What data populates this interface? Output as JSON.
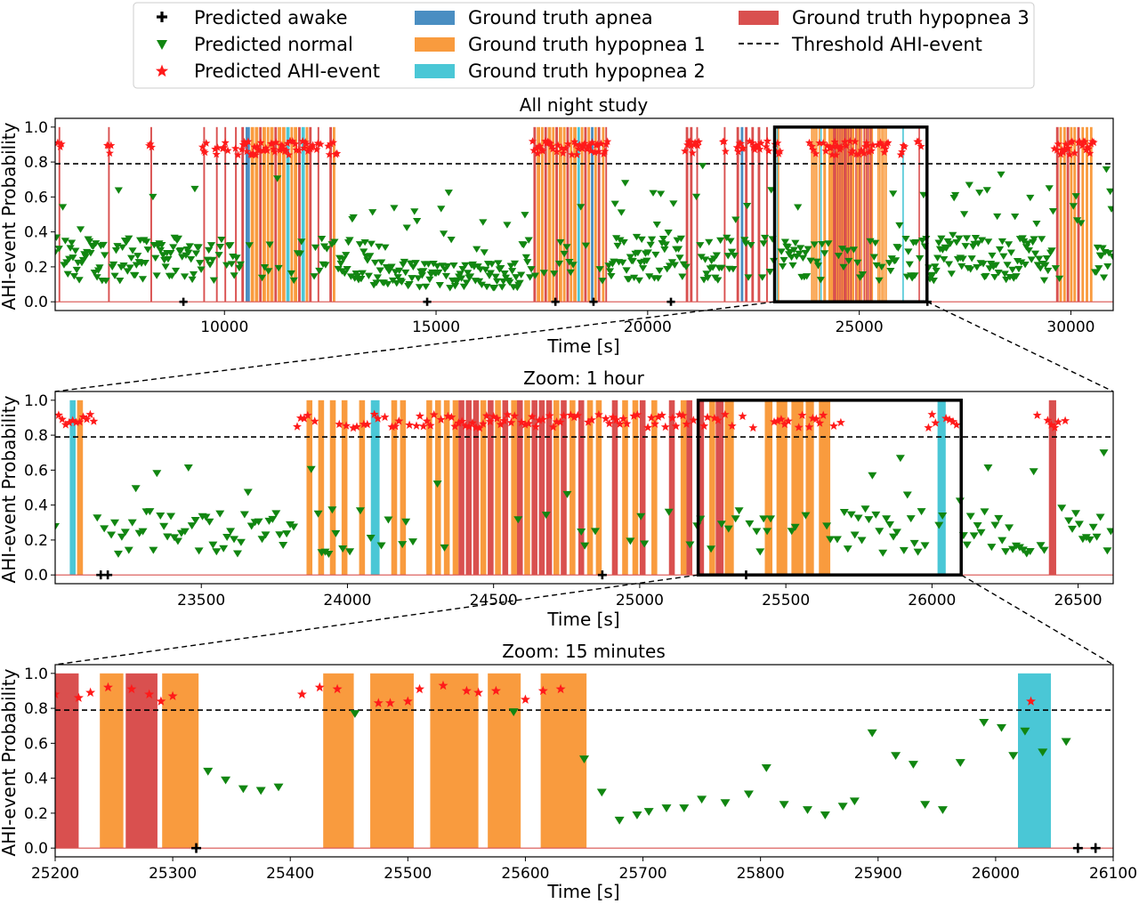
{
  "colors": {
    "apnea": "#4a8ec2",
    "hyp1": "#f99b3e",
    "hyp2": "#4ac7d6",
    "hyp3": "#d9504f",
    "normal": "#118611",
    "ahi": "#ff1a1a",
    "awake": "#000000",
    "baseline": "#d9504f"
  },
  "legend": {
    "awake": "Predicted awake",
    "normal": "Predicted normal",
    "ahi": "Predicted AHI-event",
    "apnea": "Ground truth apnea",
    "hyp1": "Ground truth hypopnea 1",
    "hyp2": "Ground truth hypopnea 2",
    "hyp3": "Ground truth hypopnea 3",
    "threshold": "Threshold AHI-event"
  },
  "chart_data": [
    {
      "type": "scatter",
      "title": "All night study",
      "xlabel": "Time [s]",
      "ylabel": "AHI-event Probability",
      "xlim": [
        6000,
        31000
      ],
      "ylim": [
        -0.05,
        1.05
      ],
      "xticks": [
        10000,
        15000,
        20000,
        25000,
        30000
      ],
      "yticks": [
        0.0,
        0.2,
        0.4,
        0.6,
        0.8,
        1.0
      ],
      "threshold": 0.79,
      "zoom_box": [
        23000,
        26600
      ],
      "events": [
        {
          "x": 6080,
          "w": 40,
          "type": "hyp3"
        },
        {
          "x": 7250,
          "w": 40,
          "type": "hyp3"
        },
        {
          "x": 8250,
          "w": 40,
          "type": "hyp3"
        },
        {
          "x": 9500,
          "w": 40,
          "type": "hyp3"
        },
        {
          "x": 9800,
          "w": 40,
          "type": "hyp3"
        },
        {
          "x": 10000,
          "w": 40,
          "type": "hyp3"
        },
        {
          "x": 10250,
          "w": 40,
          "type": "hyp3"
        },
        {
          "x": 10400,
          "w": 60,
          "type": "hyp3"
        },
        {
          "x": 10500,
          "w": 100,
          "type": "apnea"
        },
        {
          "x": 10620,
          "w": 80,
          "type": "hyp1"
        },
        {
          "x": 10720,
          "w": 80,
          "type": "hyp1"
        },
        {
          "x": 10820,
          "w": 60,
          "type": "hyp3"
        },
        {
          "x": 10900,
          "w": 80,
          "type": "hyp1"
        },
        {
          "x": 11000,
          "w": 60,
          "type": "hyp1"
        },
        {
          "x": 11080,
          "w": 80,
          "type": "hyp1"
        },
        {
          "x": 11180,
          "w": 60,
          "type": "hyp3"
        },
        {
          "x": 11260,
          "w": 80,
          "type": "hyp1"
        },
        {
          "x": 11360,
          "w": 80,
          "type": "hyp1"
        },
        {
          "x": 11460,
          "w": 80,
          "type": "hyp2"
        },
        {
          "x": 11560,
          "w": 60,
          "type": "hyp1"
        },
        {
          "x": 11640,
          "w": 80,
          "type": "hyp1"
        },
        {
          "x": 11740,
          "w": 60,
          "type": "hyp3"
        },
        {
          "x": 11820,
          "w": 80,
          "type": "hyp2"
        },
        {
          "x": 11920,
          "w": 60,
          "type": "hyp1"
        },
        {
          "x": 12000,
          "w": 60,
          "type": "hyp3"
        },
        {
          "x": 12200,
          "w": 40,
          "type": "hyp3"
        },
        {
          "x": 12480,
          "w": 60,
          "type": "hyp3"
        },
        {
          "x": 12560,
          "w": 60,
          "type": "hyp1"
        },
        {
          "x": 17300,
          "w": 60,
          "type": "hyp3"
        },
        {
          "x": 17380,
          "w": 80,
          "type": "hyp1"
        },
        {
          "x": 17480,
          "w": 60,
          "type": "hyp1"
        },
        {
          "x": 17560,
          "w": 60,
          "type": "hyp3"
        },
        {
          "x": 17640,
          "w": 80,
          "type": "hyp1"
        },
        {
          "x": 17740,
          "w": 60,
          "type": "hyp1"
        },
        {
          "x": 17820,
          "w": 60,
          "type": "hyp3"
        },
        {
          "x": 17900,
          "w": 80,
          "type": "hyp1"
        },
        {
          "x": 18000,
          "w": 60,
          "type": "hyp1"
        },
        {
          "x": 18080,
          "w": 60,
          "type": "hyp3"
        },
        {
          "x": 18160,
          "w": 60,
          "type": "hyp1"
        },
        {
          "x": 18240,
          "w": 80,
          "type": "hyp1"
        },
        {
          "x": 18340,
          "w": 60,
          "type": "hyp2"
        },
        {
          "x": 18420,
          "w": 60,
          "type": "hyp1"
        },
        {
          "x": 18500,
          "w": 60,
          "type": "hyp3"
        },
        {
          "x": 18580,
          "w": 60,
          "type": "hyp1"
        },
        {
          "x": 18660,
          "w": 60,
          "type": "apnea"
        },
        {
          "x": 18740,
          "w": 60,
          "type": "hyp1"
        },
        {
          "x": 18820,
          "w": 60,
          "type": "hyp3"
        },
        {
          "x": 18920,
          "w": 60,
          "type": "hyp1"
        },
        {
          "x": 19000,
          "w": 40,
          "type": "hyp3"
        },
        {
          "x": 20900,
          "w": 60,
          "type": "hyp3"
        },
        {
          "x": 21000,
          "w": 60,
          "type": "hyp3"
        },
        {
          "x": 21150,
          "w": 40,
          "type": "hyp3"
        },
        {
          "x": 21800,
          "w": 40,
          "type": "hyp3"
        },
        {
          "x": 22100,
          "w": 60,
          "type": "hyp3"
        },
        {
          "x": 22200,
          "w": 60,
          "type": "apnea"
        },
        {
          "x": 22300,
          "w": 60,
          "type": "hyp3"
        },
        {
          "x": 22450,
          "w": 60,
          "type": "hyp3"
        },
        {
          "x": 22600,
          "w": 60,
          "type": "hyp3"
        },
        {
          "x": 22800,
          "w": 40,
          "type": "hyp3"
        },
        {
          "x": 23050,
          "w": 20,
          "type": "hyp2"
        },
        {
          "x": 23075,
          "w": 20,
          "type": "hyp1"
        },
        {
          "x": 23860,
          "w": 20,
          "type": "hyp1"
        },
        {
          "x": 23900,
          "w": 20,
          "type": "hyp1"
        },
        {
          "x": 23940,
          "w": 20,
          "type": "hyp1"
        },
        {
          "x": 23980,
          "w": 20,
          "type": "hyp1"
        },
        {
          "x": 24040,
          "w": 20,
          "type": "hyp1"
        },
        {
          "x": 24080,
          "w": 30,
          "type": "hyp2"
        },
        {
          "x": 24150,
          "w": 20,
          "type": "hyp1"
        },
        {
          "x": 24180,
          "w": 20,
          "type": "hyp1"
        },
        {
          "x": 24270,
          "w": 20,
          "type": "hyp1"
        },
        {
          "x": 24300,
          "w": 20,
          "type": "hyp1"
        },
        {
          "x": 24330,
          "w": 20,
          "type": "hyp1"
        },
        {
          "x": 24360,
          "w": 20,
          "type": "hyp1"
        },
        {
          "x": 24380,
          "w": 20,
          "type": "hyp3"
        },
        {
          "x": 24405,
          "w": 20,
          "type": "hyp3"
        },
        {
          "x": 24430,
          "w": 20,
          "type": "hyp3"
        },
        {
          "x": 24455,
          "w": 20,
          "type": "hyp1"
        },
        {
          "x": 24480,
          "w": 20,
          "type": "hyp3"
        },
        {
          "x": 24505,
          "w": 20,
          "type": "hyp1"
        },
        {
          "x": 24530,
          "w": 20,
          "type": "hyp3"
        },
        {
          "x": 24560,
          "w": 20,
          "type": "hyp1"
        },
        {
          "x": 24580,
          "w": 20,
          "type": "hyp3"
        },
        {
          "x": 24605,
          "w": 20,
          "type": "hyp1"
        },
        {
          "x": 24630,
          "w": 20,
          "type": "hyp3"
        },
        {
          "x": 24655,
          "w": 20,
          "type": "hyp3"
        },
        {
          "x": 24680,
          "w": 20,
          "type": "hyp3"
        },
        {
          "x": 24705,
          "w": 20,
          "type": "hyp1"
        },
        {
          "x": 24730,
          "w": 20,
          "type": "hyp3"
        },
        {
          "x": 24760,
          "w": 20,
          "type": "hyp1"
        },
        {
          "x": 24790,
          "w": 20,
          "type": "hyp3"
        },
        {
          "x": 24820,
          "w": 20,
          "type": "hyp1"
        },
        {
          "x": 24850,
          "w": 20,
          "type": "hyp1"
        },
        {
          "x": 24905,
          "w": 20,
          "type": "hyp3"
        },
        {
          "x": 24940,
          "w": 20,
          "type": "hyp1"
        },
        {
          "x": 24975,
          "w": 20,
          "type": "hyp1"
        },
        {
          "x": 25000,
          "w": 20,
          "type": "hyp3"
        },
        {
          "x": 25040,
          "w": 20,
          "type": "hyp1"
        },
        {
          "x": 25100,
          "w": 20,
          "type": "hyp3"
        },
        {
          "x": 25140,
          "w": 20,
          "type": "hyp1"
        },
        {
          "x": 25160,
          "w": 20,
          "type": "hyp3"
        },
        {
          "x": 25200,
          "w": 20,
          "type": "hyp3"
        },
        {
          "x": 25238,
          "w": 20,
          "type": "hyp1"
        },
        {
          "x": 25260,
          "w": 27,
          "type": "hyp3"
        },
        {
          "x": 25291,
          "w": 31,
          "type": "hyp1"
        },
        {
          "x": 25428,
          "w": 26,
          "type": "hyp1"
        },
        {
          "x": 25468,
          "w": 37,
          "type": "hyp1"
        },
        {
          "x": 25519,
          "w": 41,
          "type": "hyp1"
        },
        {
          "x": 25568,
          "w": 28,
          "type": "hyp1"
        },
        {
          "x": 25613,
          "w": 39,
          "type": "hyp1"
        },
        {
          "x": 26019,
          "w": 28,
          "type": "hyp2"
        },
        {
          "x": 26400,
          "w": 25,
          "type": "hyp3"
        },
        {
          "x": 29650,
          "w": 60,
          "type": "hyp3"
        },
        {
          "x": 29730,
          "w": 60,
          "type": "hyp1"
        },
        {
          "x": 29820,
          "w": 60,
          "type": "hyp1"
        },
        {
          "x": 29900,
          "w": 60,
          "type": "hyp3"
        },
        {
          "x": 29980,
          "w": 60,
          "type": "hyp1"
        },
        {
          "x": 30060,
          "w": 60,
          "type": "hyp1"
        },
        {
          "x": 30150,
          "w": 60,
          "type": "hyp3"
        },
        {
          "x": 30250,
          "w": 60,
          "type": "hyp1"
        },
        {
          "x": 30350,
          "w": 60,
          "type": "hyp1"
        },
        {
          "x": 30450,
          "w": 60,
          "type": "hyp1"
        }
      ]
    },
    {
      "type": "scatter",
      "title": "Zoom: 1 hour",
      "xlabel": "Time [s]",
      "ylabel": "AHI-event Probability",
      "xlim": [
        23000,
        26620
      ],
      "ylim": [
        -0.05,
        1.05
      ],
      "xticks": [
        23500,
        24000,
        24500,
        25000,
        25500,
        26000,
        26500
      ],
      "yticks": [
        0.0,
        0.2,
        0.4,
        0.6,
        0.8,
        1.0
      ],
      "threshold": 0.79,
      "zoom_box": [
        25200,
        26100
      ]
    },
    {
      "type": "scatter",
      "title": "Zoom: 15 minutes",
      "xlabel": "Time [s]",
      "ylabel": "AHI-event Probability",
      "xlim": [
        25200,
        26100
      ],
      "ylim": [
        -0.05,
        1.05
      ],
      "xticks": [
        25200,
        25300,
        25400,
        25500,
        25600,
        25700,
        25800,
        25900,
        26000,
        26100
      ],
      "yticks": [
        0.0,
        0.2,
        0.4,
        0.6,
        0.8,
        1.0
      ],
      "threshold": 0.79,
      "points": [
        {
          "x": 25200,
          "y": 0.88,
          "c": "ahi"
        },
        {
          "x": 25220,
          "y": 0.86,
          "c": "ahi"
        },
        {
          "x": 25230,
          "y": 0.89,
          "c": "ahi"
        },
        {
          "x": 25245,
          "y": 0.92,
          "c": "ahi"
        },
        {
          "x": 25265,
          "y": 0.91,
          "c": "ahi"
        },
        {
          "x": 25280,
          "y": 0.88,
          "c": "ahi"
        },
        {
          "x": 25290,
          "y": 0.84,
          "c": "ahi"
        },
        {
          "x": 25300,
          "y": 0.87,
          "c": "ahi"
        },
        {
          "x": 25320,
          "y": 0.0,
          "c": "awake"
        },
        {
          "x": 25330,
          "y": 0.44,
          "c": "normal"
        },
        {
          "x": 25345,
          "y": 0.39,
          "c": "normal"
        },
        {
          "x": 25360,
          "y": 0.34,
          "c": "normal"
        },
        {
          "x": 25375,
          "y": 0.33,
          "c": "normal"
        },
        {
          "x": 25390,
          "y": 0.35,
          "c": "normal"
        },
        {
          "x": 25410,
          "y": 0.88,
          "c": "ahi"
        },
        {
          "x": 25425,
          "y": 0.92,
          "c": "ahi"
        },
        {
          "x": 25440,
          "y": 0.91,
          "c": "ahi"
        },
        {
          "x": 25455,
          "y": 0.77,
          "c": "normal"
        },
        {
          "x": 25475,
          "y": 0.83,
          "c": "ahi"
        },
        {
          "x": 25485,
          "y": 0.83,
          "c": "ahi"
        },
        {
          "x": 25500,
          "y": 0.84,
          "c": "ahi"
        },
        {
          "x": 25510,
          "y": 0.91,
          "c": "ahi"
        },
        {
          "x": 25530,
          "y": 0.93,
          "c": "ahi"
        },
        {
          "x": 25550,
          "y": 0.9,
          "c": "ahi"
        },
        {
          "x": 25560,
          "y": 0.89,
          "c": "ahi"
        },
        {
          "x": 25575,
          "y": 0.9,
          "c": "ahi"
        },
        {
          "x": 25590,
          "y": 0.78,
          "c": "normal"
        },
        {
          "x": 25600,
          "y": 0.85,
          "c": "ahi"
        },
        {
          "x": 25615,
          "y": 0.9,
          "c": "ahi"
        },
        {
          "x": 25630,
          "y": 0.91,
          "c": "ahi"
        },
        {
          "x": 25650,
          "y": 0.51,
          "c": "normal"
        },
        {
          "x": 25665,
          "y": 0.32,
          "c": "normal"
        },
        {
          "x": 25680,
          "y": 0.16,
          "c": "normal"
        },
        {
          "x": 25695,
          "y": 0.19,
          "c": "normal"
        },
        {
          "x": 25705,
          "y": 0.21,
          "c": "normal"
        },
        {
          "x": 25720,
          "y": 0.23,
          "c": "normal"
        },
        {
          "x": 25735,
          "y": 0.23,
          "c": "normal"
        },
        {
          "x": 25750,
          "y": 0.28,
          "c": "normal"
        },
        {
          "x": 25770,
          "y": 0.26,
          "c": "normal"
        },
        {
          "x": 25790,
          "y": 0.31,
          "c": "normal"
        },
        {
          "x": 25805,
          "y": 0.46,
          "c": "normal"
        },
        {
          "x": 25820,
          "y": 0.25,
          "c": "normal"
        },
        {
          "x": 25840,
          "y": 0.22,
          "c": "normal"
        },
        {
          "x": 25855,
          "y": 0.19,
          "c": "normal"
        },
        {
          "x": 25870,
          "y": 0.24,
          "c": "normal"
        },
        {
          "x": 25880,
          "y": 0.27,
          "c": "normal"
        },
        {
          "x": 25895,
          "y": 0.66,
          "c": "normal"
        },
        {
          "x": 25915,
          "y": 0.53,
          "c": "normal"
        },
        {
          "x": 25930,
          "y": 0.48,
          "c": "normal"
        },
        {
          "x": 25940,
          "y": 0.25,
          "c": "normal"
        },
        {
          "x": 25955,
          "y": 0.22,
          "c": "normal"
        },
        {
          "x": 25970,
          "y": 0.49,
          "c": "normal"
        },
        {
          "x": 25990,
          "y": 0.72,
          "c": "normal"
        },
        {
          "x": 26005,
          "y": 0.69,
          "c": "normal"
        },
        {
          "x": 26015,
          "y": 0.53,
          "c": "normal"
        },
        {
          "x": 26025,
          "y": 0.67,
          "c": "normal"
        },
        {
          "x": 26030,
          "y": 0.84,
          "c": "ahi"
        },
        {
          "x": 26040,
          "y": 0.55,
          "c": "normal"
        },
        {
          "x": 26060,
          "y": 0.61,
          "c": "normal"
        },
        {
          "x": 26070,
          "y": 0.0,
          "c": "awake"
        },
        {
          "x": 26085,
          "y": 0.0,
          "c": "awake"
        }
      ]
    }
  ]
}
